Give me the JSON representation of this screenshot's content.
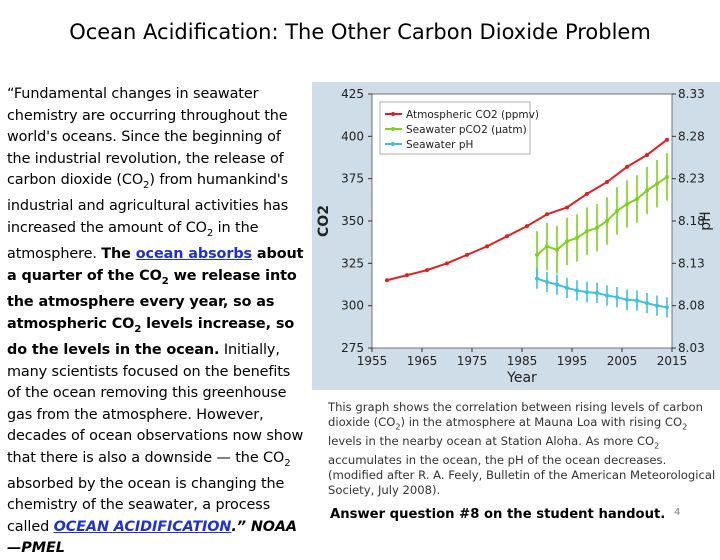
{
  "slide": {
    "title": "Ocean Acidification: The Other Carbon Dioxide Problem",
    "quote": {
      "p1": "“Fundamental changes in seawater chemistry are occurring throughout the world's oceans. Since the beginning of the industrial revolution, the release of carbon dioxide (CO",
      "p2": ") from humankind's industrial and agricultural activities has increased the amount of CO",
      "p3": " in the atmosphere. ",
      "b1": "The ",
      "link_text": "ocean absorbs",
      "b2": " about a quarter of the CO",
      "b3": " we release into the atmosphere every year, so as atmospheric CO",
      "b4": " levels increase, so do the levels in the ocean.",
      "p4": " Initially, many scientists focused on the benefits of the ocean removing this greenhouse gas from the atmosphere. However, decades of ocean observations now show that there is also a downside — the CO",
      "p5": " absorbed by the ocean is changing the chemistry of the seawater, a process called ",
      "link2_text": "OCEAN ACIDIFICATION",
      "end": ".” NOAA—PMEL",
      "sub2": "2"
    },
    "caption": {
      "c1": "This graph shows the correlation between rising levels of carbon dioxide (CO",
      "c2": ") in the atmosphere at Mauna Loa with rising CO",
      "c3": " levels in the nearby ocean at Station Aloha. As more CO",
      "c4": " accumulates in the ocean, the pH of the ocean decreases. (modified after R. A. Feely, Bulletin of the American Meteorological Society, July 2008).",
      "sub2": "2"
    },
    "answer": "Answer question #8 on the student handout.",
    "page_number": "4"
  },
  "colors": {
    "co2_atm": "#e02020",
    "co2_sea": "#7fd020",
    "ph": "#3fc0e0",
    "chart_bg": "#cfdde8"
  },
  "chart_data": {
    "type": "line",
    "xlabel": "Year",
    "ylabel": "CO2",
    "ylabel_right": "pH",
    "xlim": [
      1955,
      2015
    ],
    "ylim": [
      275,
      425
    ],
    "ylim_right": [
      8.03,
      8.33
    ],
    "xticks": [
      "1955",
      "1965",
      "1975",
      "1985",
      "1995",
      "2005",
      "2015"
    ],
    "yticks": [
      "275",
      "300",
      "325",
      "350",
      "375",
      "400",
      "425"
    ],
    "yticks_right": [
      "8.03",
      "8.08",
      "8.13",
      "8.18",
      "8.23",
      "8.28",
      "8.33"
    ],
    "legend": [
      "Atmospheric CO2 (ppmv)",
      "Seawater pCO2 (μatm)",
      "Seawater pH"
    ],
    "series": [
      {
        "name": "Atmospheric CO2 (ppmv)",
        "axis": "left",
        "x": [
          1958,
          1962,
          1966,
          1970,
          1974,
          1978,
          1982,
          1986,
          1990,
          1994,
          1998,
          2002,
          2006,
          2010,
          2014
        ],
        "values": [
          315,
          318,
          321,
          325,
          330,
          335,
          341,
          347,
          354,
          358,
          366,
          373,
          382,
          389,
          398
        ]
      },
      {
        "name": "Seawater pCO2 (μatm)",
        "axis": "left",
        "x": [
          1988,
          1990,
          1992,
          1994,
          1996,
          1998,
          2000,
          2002,
          2004,
          2006,
          2008,
          2010,
          2012,
          2014
        ],
        "values": [
          330,
          335,
          333,
          338,
          340,
          344,
          346,
          350,
          356,
          360,
          363,
          368,
          372,
          376
        ]
      },
      {
        "name": "Seawater pH",
        "axis": "right",
        "x": [
          1988,
          1990,
          1992,
          1994,
          1996,
          1998,
          2000,
          2002,
          2004,
          2006,
          2008,
          2010,
          2012,
          2014
        ],
        "values": [
          8.112,
          8.108,
          8.105,
          8.101,
          8.098,
          8.096,
          8.095,
          8.092,
          8.09,
          8.087,
          8.086,
          8.083,
          8.08,
          8.078
        ]
      }
    ]
  }
}
